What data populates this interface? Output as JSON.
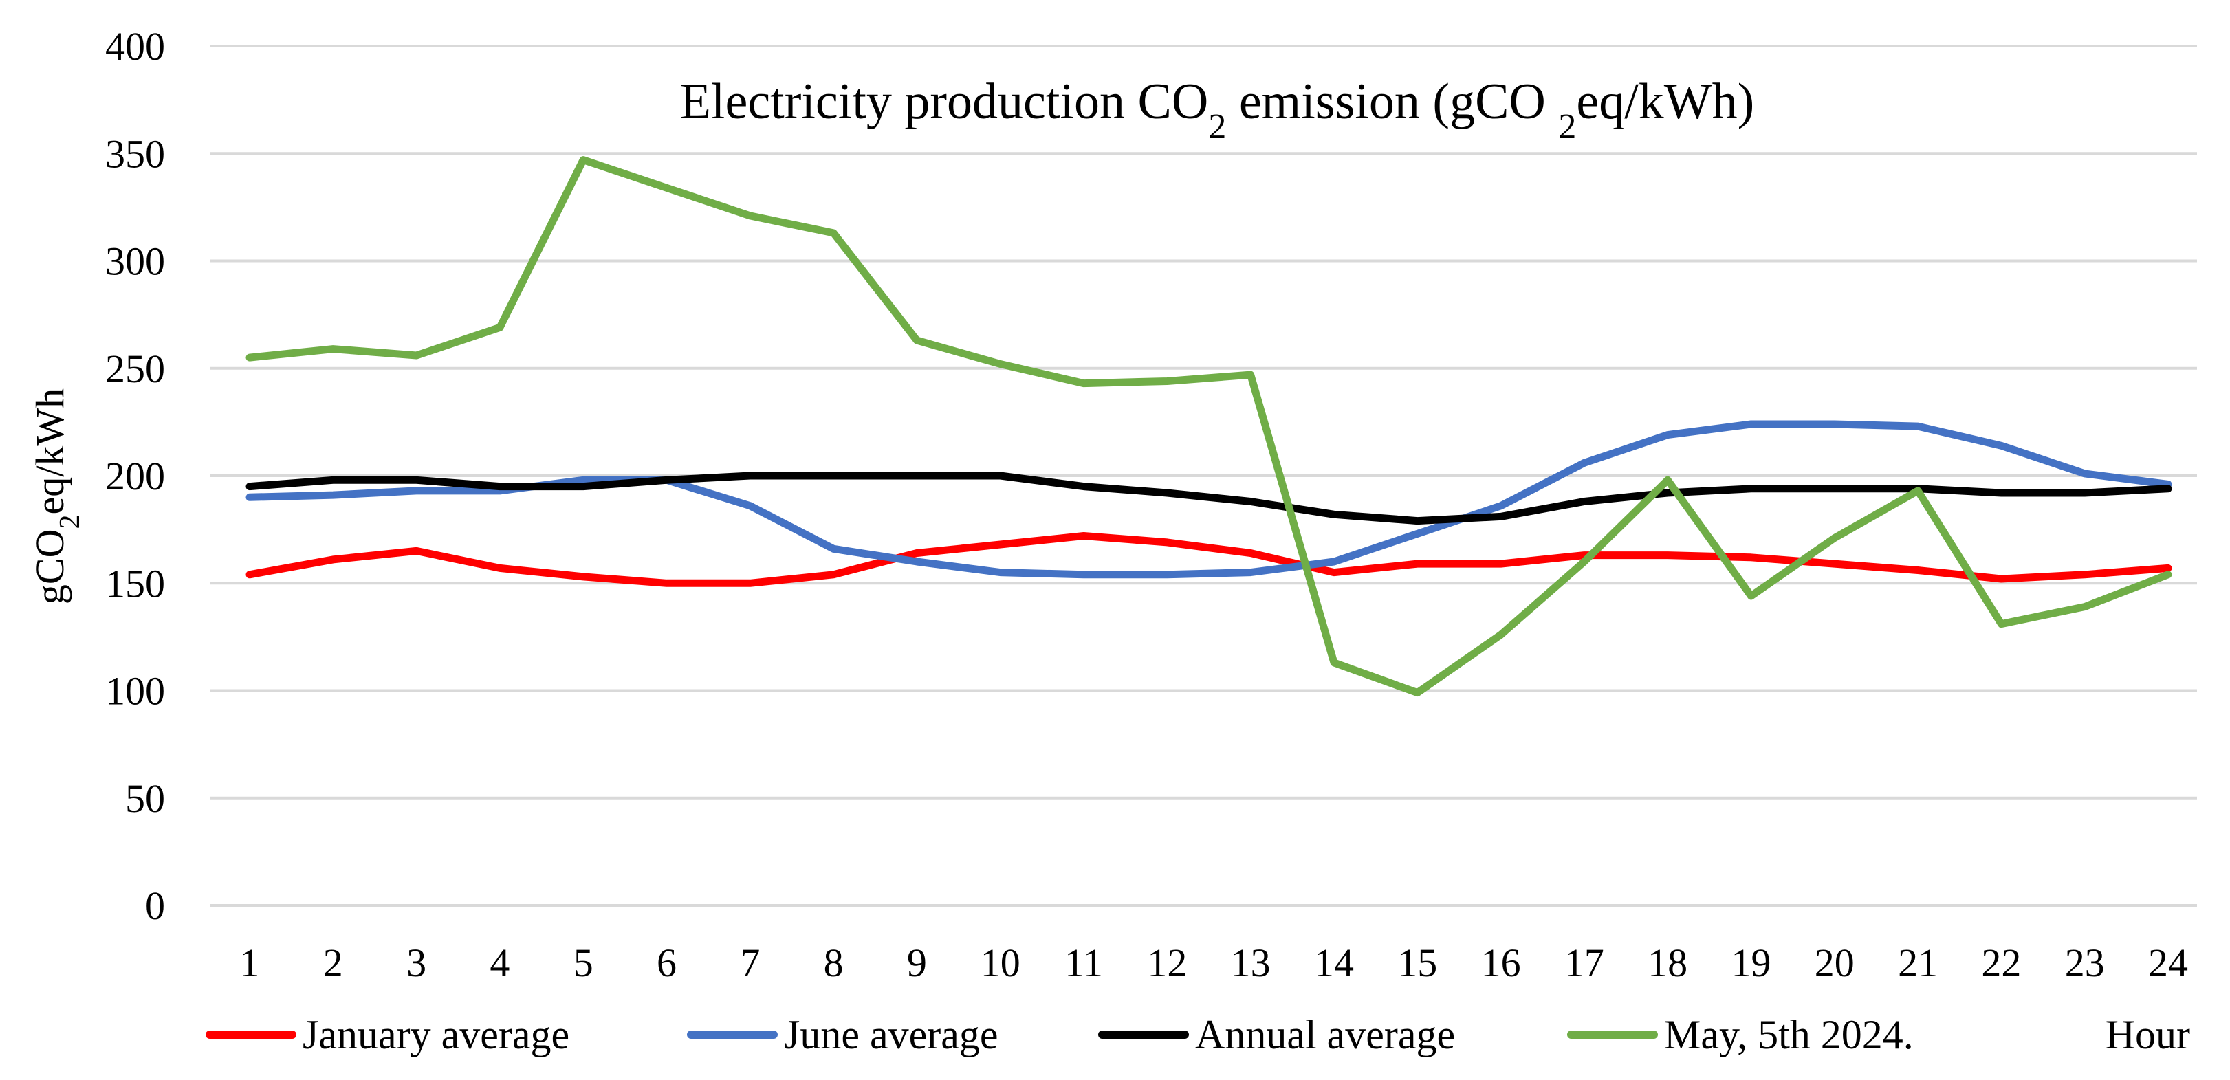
{
  "chart_data": {
    "type": "line",
    "title": {
      "prefix": "Electricity production  CO",
      "sub1": "2",
      "middle": " emission (gCO ",
      "sub2": "2",
      "suffix": "eq/kWh)"
    },
    "ylabel": {
      "prefix": "gCO",
      "sub": "2",
      "suffix": "eq/kWh"
    },
    "xlabel": "Hour",
    "ylim": [
      0,
      400
    ],
    "yticks": [
      0,
      50,
      100,
      150,
      200,
      250,
      300,
      350,
      400
    ],
    "categories": [
      "1",
      "2",
      "3",
      "4",
      "5",
      "6",
      "7",
      "8",
      "9",
      "10",
      "11",
      "12",
      "13",
      "14",
      "15",
      "16",
      "17",
      "18",
      "19",
      "20",
      "21",
      "22",
      "23",
      "24"
    ],
    "grid": true,
    "legend_position": "bottom",
    "series": [
      {
        "name": "January average",
        "color": "#ff0000",
        "values": [
          154,
          161,
          165,
          157,
          153,
          150,
          150,
          154,
          164,
          168,
          172,
          169,
          164,
          155,
          159,
          159,
          163,
          163,
          162,
          159,
          156,
          152,
          154,
          157
        ]
      },
      {
        "name": "June average",
        "color": "#4472c4",
        "values": [
          190,
          191,
          193,
          193,
          198,
          198,
          186,
          166,
          160,
          155,
          154,
          154,
          155,
          160,
          173,
          186,
          206,
          219,
          224,
          224,
          223,
          214,
          201,
          196
        ]
      },
      {
        "name": "Annual average",
        "color": "#000000",
        "values": [
          195,
          198,
          198,
          195,
          195,
          198,
          200,
          200,
          200,
          200,
          195,
          192,
          188,
          182,
          179,
          181,
          188,
          192,
          194,
          194,
          194,
          192,
          192,
          194
        ]
      },
      {
        "name": "May, 5th 2024.",
        "color": "#70ad47",
        "values": [
          255,
          259,
          256,
          269,
          347,
          334,
          321,
          313,
          263,
          252,
          243,
          244,
          247,
          113,
          99,
          126,
          160,
          198,
          144,
          171,
          193,
          131,
          139,
          154
        ]
      }
    ]
  }
}
